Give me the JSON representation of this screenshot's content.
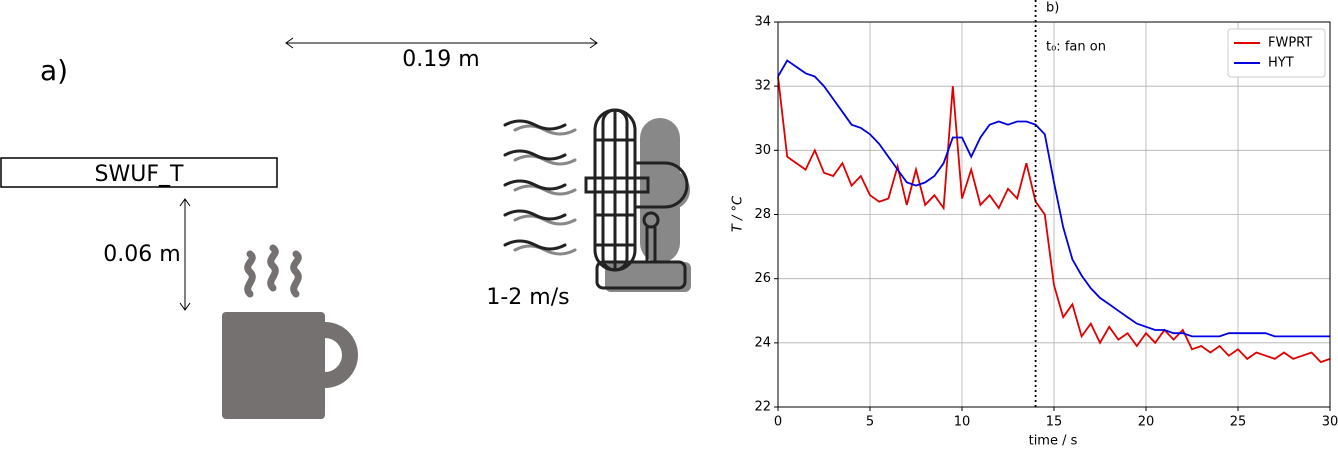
{
  "diagram": {
    "panel_label": "a)",
    "distance_label": "0.19 m",
    "sensor_label": "SWUF_T",
    "height_label": "0.06 m",
    "wind_label": "1-2 m/s"
  },
  "chart_data": {
    "type": "line",
    "panel_label": "b)",
    "xlabel": "time / s",
    "ylabel": "T / °C",
    "annotation": "t₀: fan on",
    "vline_x": 14,
    "x": [
      0,
      0.5,
      1,
      1.5,
      2,
      2.5,
      3,
      3.5,
      4,
      4.5,
      5,
      5.5,
      6,
      6.5,
      7,
      7.5,
      8,
      8.5,
      9,
      9.5,
      10,
      10.5,
      11,
      11.5,
      12,
      12.5,
      13,
      13.5,
      14,
      14.5,
      15,
      15.5,
      16,
      16.5,
      17,
      17.5,
      18,
      18.5,
      19,
      19.5,
      20,
      20.5,
      21,
      21.5,
      22,
      22.5,
      23,
      23.5,
      24,
      24.5,
      25,
      25.5,
      26,
      26.5,
      27,
      27.5,
      28,
      28.5,
      29,
      29.5,
      30
    ],
    "series": [
      {
        "name": "FWPRT",
        "color": "#e00000",
        "values": [
          32.3,
          29.8,
          29.6,
          29.4,
          30.0,
          29.3,
          29.2,
          29.6,
          28.9,
          29.2,
          28.6,
          28.4,
          28.5,
          29.5,
          28.3,
          29.4,
          28.3,
          28.6,
          28.2,
          32.0,
          28.5,
          29.4,
          28.3,
          28.6,
          28.2,
          28.8,
          28.5,
          29.6,
          28.4,
          28.0,
          25.8,
          24.8,
          25.2,
          24.2,
          24.6,
          24.0,
          24.5,
          24.1,
          24.3,
          23.9,
          24.3,
          24.0,
          24.4,
          24.1,
          24.4,
          23.8,
          23.9,
          23.7,
          23.9,
          23.6,
          23.8,
          23.5,
          23.7,
          23.6,
          23.5,
          23.7,
          23.5,
          23.6,
          23.7,
          23.4,
          23.5
        ]
      },
      {
        "name": "HYT",
        "color": "#0000e0",
        "values": [
          32.3,
          32.8,
          32.6,
          32.4,
          32.3,
          32.0,
          31.6,
          31.2,
          30.8,
          30.7,
          30.5,
          30.2,
          29.8,
          29.4,
          29.0,
          28.9,
          29.0,
          29.2,
          29.6,
          30.4,
          30.4,
          29.8,
          30.4,
          30.8,
          30.9,
          30.8,
          30.9,
          30.9,
          30.8,
          30.5,
          29.0,
          27.6,
          26.6,
          26.1,
          25.7,
          25.4,
          25.2,
          25.0,
          24.8,
          24.6,
          24.5,
          24.4,
          24.4,
          24.3,
          24.3,
          24.2,
          24.2,
          24.2,
          24.2,
          24.3,
          24.3,
          24.3,
          24.3,
          24.3,
          24.2,
          24.2,
          24.2,
          24.2,
          24.2,
          24.2,
          24.2
        ]
      }
    ],
    "xlim": [
      0,
      30
    ],
    "xticks": [
      0,
      5,
      10,
      15,
      20,
      25,
      30
    ],
    "ylim": [
      22,
      34
    ],
    "yticks": [
      22,
      24,
      26,
      28,
      30,
      32,
      34
    ],
    "grid": true,
    "legend": "upper right"
  }
}
